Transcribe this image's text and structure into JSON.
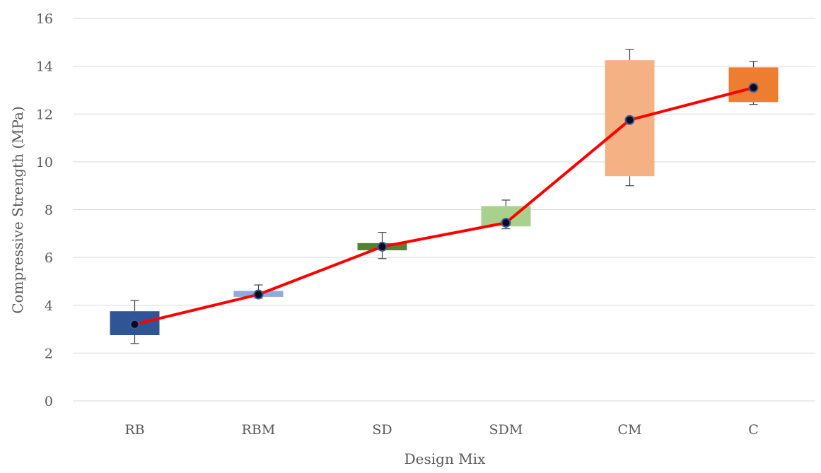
{
  "chart_data": {
    "type": "box",
    "xlabel": "Design Mix",
    "ylabel": "Compressive Strength (MPa)",
    "ylim": [
      0,
      16
    ],
    "yticks": [
      0,
      2,
      4,
      6,
      8,
      10,
      12,
      14,
      16
    ],
    "grid": true,
    "categories": [
      "RB",
      "RBM",
      "SD",
      "SDM",
      "CM",
      "C"
    ],
    "boxes": [
      {
        "category": "RB",
        "min": 2.4,
        "q1": 2.75,
        "q3": 3.75,
        "max": 4.2,
        "mean": 3.2,
        "color": "#2f5597"
      },
      {
        "category": "RBM",
        "min": 4.3,
        "q1": 4.35,
        "q3": 4.6,
        "max": 4.85,
        "mean": 4.45,
        "color": "#8faadc"
      },
      {
        "category": "SD",
        "min": 5.95,
        "q1": 6.3,
        "q3": 6.6,
        "max": 7.05,
        "mean": 6.45,
        "color": "#548235"
      },
      {
        "category": "SDM",
        "min": 7.2,
        "q1": 7.3,
        "q3": 8.15,
        "max": 8.4,
        "mean": 7.45,
        "color": "#a9d18e"
      },
      {
        "category": "CM",
        "min": 9.0,
        "q1": 9.4,
        "q3": 14.25,
        "max": 14.7,
        "mean": 11.75,
        "color": "#f4b183"
      },
      {
        "category": "C",
        "min": 12.4,
        "q1": 12.5,
        "q3": 13.95,
        "max": 14.2,
        "mean": 13.1,
        "color": "#ed7d31"
      }
    ],
    "mean_line_color": "#ff0000"
  }
}
